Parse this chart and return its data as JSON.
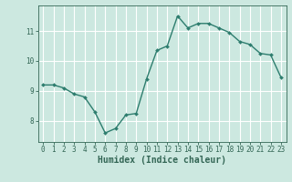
{
  "x": [
    0,
    1,
    2,
    3,
    4,
    5,
    6,
    7,
    8,
    9,
    10,
    11,
    12,
    13,
    14,
    15,
    16,
    17,
    18,
    19,
    20,
    21,
    22,
    23
  ],
  "y": [
    9.2,
    9.2,
    9.1,
    8.9,
    8.8,
    8.3,
    7.6,
    7.75,
    8.2,
    8.25,
    9.4,
    10.35,
    10.5,
    11.5,
    11.1,
    11.25,
    11.25,
    11.1,
    10.95,
    10.65,
    10.55,
    10.25,
    10.2,
    9.45
  ],
  "line_color": "#2d7d6e",
  "marker": "D",
  "marker_size": 2.0,
  "bg_color": "#cce8e0",
  "grid_color": "#ffffff",
  "xlabel": "Humidex (Indice chaleur)",
  "ylim": [
    7.3,
    11.85
  ],
  "xlim": [
    -0.5,
    23.5
  ],
  "yticks": [
    8,
    9,
    10,
    11
  ],
  "xticks": [
    0,
    1,
    2,
    3,
    4,
    5,
    6,
    7,
    8,
    9,
    10,
    11,
    12,
    13,
    14,
    15,
    16,
    17,
    18,
    19,
    20,
    21,
    22,
    23
  ],
  "tick_fontsize": 5.5,
  "label_fontsize": 7.0,
  "line_width": 1.0,
  "axis_color": "#336655"
}
